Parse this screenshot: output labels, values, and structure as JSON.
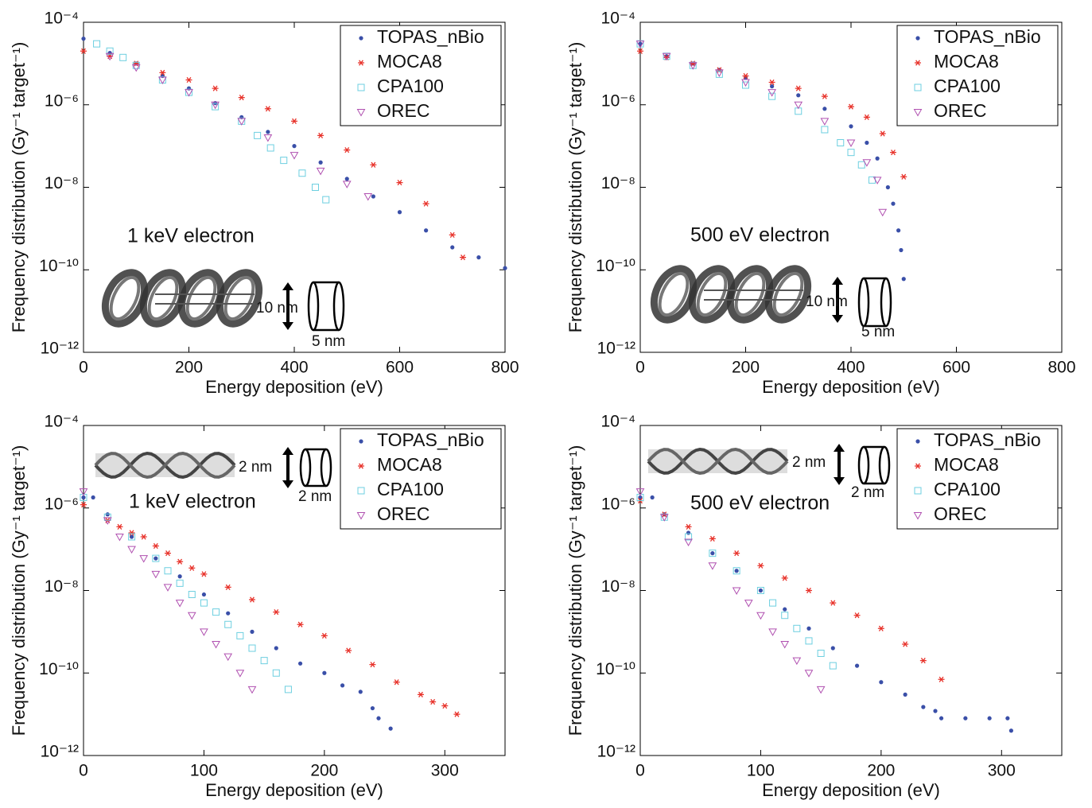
{
  "chart_data": [
    {
      "type": "scatter",
      "xlabel": "Energy deposition (eV)",
      "ylabel": "Frequency distribution (Gy⁻¹ target⁻¹)",
      "log_y": true,
      "legend": "upper right",
      "xlim": [
        0,
        800
      ],
      "xticks": [
        0,
        200,
        400,
        600,
        800
      ],
      "ylim": [
        1e-12,
        0.0001
      ],
      "yticks": [
        {
          "value": 1e-12,
          "label": "10⁻¹²"
        },
        {
          "value": 1e-10,
          "label": "10⁻¹⁰"
        },
        {
          "value": 1e-08,
          "label": "10⁻⁸"
        },
        {
          "value": 1e-06,
          "label": "10⁻⁶"
        },
        {
          "value": 0.0001,
          "label": "10⁻⁴"
        }
      ],
      "annotations": [
        "1 keV electron",
        "10 nm",
        "5 nm"
      ],
      "series": [
        {
          "name": "TOPAS_nBio",
          "color": "#3a4fa8",
          "marker": "dot",
          "x": [
            0,
            50,
            100,
            150,
            200,
            250,
            300,
            350,
            400,
            450,
            500,
            550,
            600,
            650,
            700,
            750,
            800
          ],
          "values": [
            4e-05,
            1.8e-05,
            1e-05,
            5e-06,
            2.5e-06,
            1.1e-06,
            5e-07,
            2.2e-07,
            1e-07,
            4e-08,
            1.6e-08,
            6e-09,
            2.5e-09,
            9e-10,
            3.5e-10,
            2e-10,
            1.1e-10
          ]
        },
        {
          "name": "MOCA8",
          "color": "#e8322a",
          "marker": "asterisk",
          "x": [
            0,
            50,
            100,
            150,
            200,
            250,
            300,
            350,
            400,
            450,
            500,
            550,
            600,
            650,
            700,
            720
          ],
          "values": [
            2e-05,
            1.5e-05,
            1e-05,
            6e-06,
            4e-06,
            2.5e-06,
            1.5e-06,
            8e-07,
            4e-07,
            1.8e-07,
            8e-08,
            3.5e-08,
            1.3e-08,
            4e-09,
            7e-10,
            2e-10
          ]
        },
        {
          "name": "CPA100",
          "color": "#6dcfe0",
          "marker": "square",
          "x": [
            25,
            50,
            75,
            100,
            150,
            200,
            250,
            300,
            330,
            355,
            380,
            415,
            440,
            460
          ],
          "values": [
            3e-05,
            2e-05,
            1.4e-05,
            9e-06,
            4e-06,
            2e-06,
            9e-07,
            4e-07,
            1.8e-07,
            9e-08,
            4.5e-08,
            2.2e-08,
            1e-08,
            5e-09
          ]
        },
        {
          "name": "OREC",
          "color": "#b050b0",
          "marker": "triangle",
          "x": [
            50,
            100,
            150,
            200,
            250,
            300,
            350,
            400,
            450,
            500,
            540
          ],
          "values": [
            1.5e-05,
            8e-06,
            4e-06,
            2e-06,
            1e-06,
            4e-07,
            1.6e-07,
            6e-08,
            2.5e-08,
            1.2e-08,
            6e-09
          ]
        }
      ]
    },
    {
      "type": "scatter",
      "xlabel": "Energy deposition (eV)",
      "ylabel": "Frequency distribution (Gy⁻¹ target⁻¹)",
      "log_y": true,
      "legend": "upper right",
      "xlim": [
        0,
        800
      ],
      "xticks": [
        0,
        200,
        400,
        600,
        800
      ],
      "ylim": [
        1e-12,
        0.0001
      ],
      "yticks": [
        {
          "value": 1e-12,
          "label": "10⁻¹²"
        },
        {
          "value": 1e-10,
          "label": "10⁻¹⁰"
        },
        {
          "value": 1e-08,
          "label": "10⁻⁸"
        },
        {
          "value": 1e-06,
          "label": "10⁻⁶"
        },
        {
          "value": 0.0001,
          "label": "10⁻⁴"
        }
      ],
      "annotations": [
        "500 eV electron",
        "10 nm",
        "5 nm"
      ],
      "series": [
        {
          "name": "TOPAS_nBio",
          "color": "#3a4fa8",
          "marker": "dot",
          "x": [
            0,
            50,
            100,
            150,
            200,
            250,
            300,
            350,
            400,
            430,
            450,
            470,
            480,
            490,
            495,
            500
          ],
          "values": [
            3e-05,
            1.5e-05,
            1e-05,
            7e-06,
            4.5e-06,
            2.8e-06,
            1.7e-06,
            8e-07,
            3e-07,
            1.2e-07,
            5e-08,
            1e-08,
            4e-09,
            9e-10,
            3e-10,
            6e-11
          ]
        },
        {
          "name": "MOCA8",
          "color": "#e8322a",
          "marker": "asterisk",
          "x": [
            0,
            50,
            100,
            150,
            200,
            250,
            300,
            350,
            400,
            430,
            460,
            480,
            500
          ],
          "values": [
            2e-05,
            1.4e-05,
            1e-05,
            7e-06,
            5e-06,
            3.5e-06,
            2.5e-06,
            1.6e-06,
            9e-07,
            5e-07,
            2e-07,
            7e-08,
            1.8e-08
          ]
        },
        {
          "name": "CPA100",
          "color": "#6dcfe0",
          "marker": "square",
          "x": [
            0,
            50,
            100,
            150,
            200,
            250,
            300,
            350,
            380,
            400,
            420,
            440
          ],
          "values": [
            3e-05,
            1.5e-05,
            9e-06,
            5.5e-06,
            3e-06,
            1.6e-06,
            7e-07,
            2.5e-07,
            1.2e-07,
            7e-08,
            3.5e-08,
            1.5e-08
          ]
        },
        {
          "name": "OREC",
          "color": "#b050b0",
          "marker": "triangle",
          "x": [
            0,
            50,
            100,
            150,
            200,
            250,
            300,
            350,
            400,
            430,
            450,
            460
          ],
          "values": [
            3e-05,
            1.5e-05,
            9e-06,
            6e-06,
            3.5e-06,
            2e-06,
            1e-06,
            4e-07,
            1.2e-07,
            4e-08,
            1.5e-08,
            2.5e-09
          ]
        }
      ]
    },
    {
      "type": "scatter",
      "xlabel": "Energy deposition (eV)",
      "ylabel": "Frequency distribution (Gy⁻¹ target⁻¹)",
      "log_y": true,
      "legend": "upper right",
      "xlim": [
        0,
        350
      ],
      "xticks": [
        0,
        100,
        200,
        300
      ],
      "ylim": [
        1e-12,
        0.0001
      ],
      "yticks": [
        {
          "value": 1e-12,
          "label": "10⁻¹²"
        },
        {
          "value": 1e-10,
          "label": "10⁻¹⁰"
        },
        {
          "value": 1e-08,
          "label": "10⁻⁸"
        },
        {
          "value": 1e-06,
          "label": "10⁻⁶"
        },
        {
          "value": 0.0001,
          "label": "10⁻⁴"
        }
      ],
      "annotations": [
        "1 keV electron",
        "2 nm",
        "2 nm"
      ],
      "series": [
        {
          "name": "TOPAS_nBio",
          "color": "#3a4fa8",
          "marker": "dot",
          "x": [
            0,
            8,
            20,
            40,
            60,
            80,
            100,
            120,
            140,
            160,
            180,
            200,
            215,
            230,
            240,
            245,
            255
          ],
          "values": [
            1.8e-06,
            1.8e-06,
            7e-07,
            2e-07,
            6e-08,
            2.2e-08,
            8e-09,
            2.8e-09,
            1e-09,
            4e-10,
            1.7e-10,
            1e-10,
            5e-11,
            3.5e-11,
            1.4e-11,
            8e-12,
            4.5e-12
          ]
        },
        {
          "name": "MOCA8",
          "color": "#e8322a",
          "marker": "asterisk",
          "x": [
            0,
            20,
            30,
            40,
            50,
            60,
            70,
            80,
            90,
            100,
            120,
            140,
            160,
            180,
            200,
            220,
            240,
            260,
            280,
            290,
            300,
            310
          ],
          "values": [
            1.2e-06,
            5e-07,
            3.5e-07,
            2.5e-07,
            2e-07,
            1.2e-07,
            8e-08,
            5e-08,
            3.5e-08,
            2.5e-08,
            1.2e-08,
            6e-09,
            3e-09,
            1.5e-09,
            8e-10,
            3.5e-10,
            1.6e-10,
            6e-11,
            3e-11,
            2e-11,
            1.6e-11,
            1e-11
          ]
        },
        {
          "name": "CPA100",
          "color": "#6dcfe0",
          "marker": "square",
          "x": [
            0,
            20,
            40,
            60,
            70,
            80,
            90,
            100,
            110,
            120,
            130,
            140,
            150,
            160,
            170
          ],
          "values": [
            1.8e-06,
            6e-07,
            2e-07,
            6e-08,
            3e-08,
            1.5e-08,
            8e-09,
            5e-09,
            3e-09,
            1.5e-09,
            8e-10,
            4e-10,
            2e-10,
            1e-10,
            4e-11
          ]
        },
        {
          "name": "OREC",
          "color": "#b050b0",
          "marker": "triangle",
          "x": [
            0,
            20,
            30,
            40,
            50,
            60,
            70,
            80,
            90,
            100,
            110,
            120,
            130,
            140
          ],
          "values": [
            2.5e-06,
            5e-07,
            2e-07,
            1e-07,
            6e-08,
            2.5e-08,
            1.2e-08,
            5e-09,
            2.5e-09,
            1e-09,
            5e-10,
            2.5e-10,
            1e-10,
            4e-11
          ]
        }
      ]
    },
    {
      "type": "scatter",
      "xlabel": "Energy deposition (eV)",
      "ylabel": "Frequency distribution (Gy⁻¹ target⁻¹)",
      "log_y": true,
      "legend": "upper right",
      "xlim": [
        0,
        350
      ],
      "xticks": [
        0,
        100,
        200,
        300
      ],
      "ylim": [
        1e-12,
        0.0001
      ],
      "yticks": [
        {
          "value": 1e-12,
          "label": "10⁻¹²"
        },
        {
          "value": 1e-10,
          "label": "10⁻¹⁰"
        },
        {
          "value": 1e-08,
          "label": "10⁻⁸"
        },
        {
          "value": 1e-06,
          "label": "10⁻⁶"
        },
        {
          "value": 0.0001,
          "label": "10⁻⁴"
        }
      ],
      "annotations": [
        "500 eV electron",
        "2 nm",
        "2 nm"
      ],
      "series": [
        {
          "name": "TOPAS_nBio",
          "color": "#3a4fa8",
          "marker": "dot",
          "x": [
            0,
            10,
            20,
            40,
            60,
            80,
            100,
            120,
            140,
            160,
            180,
            200,
            220,
            235,
            245,
            250,
            270,
            290,
            305,
            308
          ],
          "values": [
            1.8e-06,
            1.8e-06,
            7e-07,
            2.5e-07,
            8e-08,
            3e-08,
            1e-08,
            3.5e-09,
            1.2e-09,
            4e-10,
            1.5e-10,
            6e-11,
            3e-11,
            1.5e-11,
            1.2e-11,
            8e-12,
            8e-12,
            8e-12,
            8e-12,
            4e-12
          ]
        },
        {
          "name": "MOCA8",
          "color": "#e8322a",
          "marker": "asterisk",
          "x": [
            0,
            20,
            40,
            60,
            80,
            100,
            120,
            140,
            160,
            180,
            200,
            220,
            235,
            250
          ],
          "values": [
            1.5e-06,
            7e-07,
            3.5e-07,
            1.8e-07,
            8e-08,
            4e-08,
            2e-08,
            1e-08,
            5e-09,
            2.5e-09,
            1.2e-09,
            5e-10,
            2e-10,
            7e-11
          ]
        },
        {
          "name": "CPA100",
          "color": "#6dcfe0",
          "marker": "square",
          "x": [
            0,
            20,
            40,
            60,
            80,
            100,
            110,
            120,
            130,
            140,
            150,
            160
          ],
          "values": [
            1.8e-06,
            6e-07,
            2e-07,
            8e-08,
            3e-08,
            1e-08,
            5e-09,
            2.5e-09,
            1.2e-09,
            6e-10,
            3e-10,
            1.5e-10
          ]
        },
        {
          "name": "OREC",
          "color": "#b050b0",
          "marker": "triangle",
          "x": [
            0,
            20,
            40,
            60,
            80,
            90,
            100,
            110,
            120,
            130,
            140,
            150
          ],
          "values": [
            2.5e-06,
            6e-07,
            1.5e-07,
            4e-08,
            1e-08,
            5e-09,
            2.5e-09,
            1e-09,
            5e-10,
            2e-10,
            1e-10,
            4e-11
          ]
        }
      ]
    }
  ]
}
